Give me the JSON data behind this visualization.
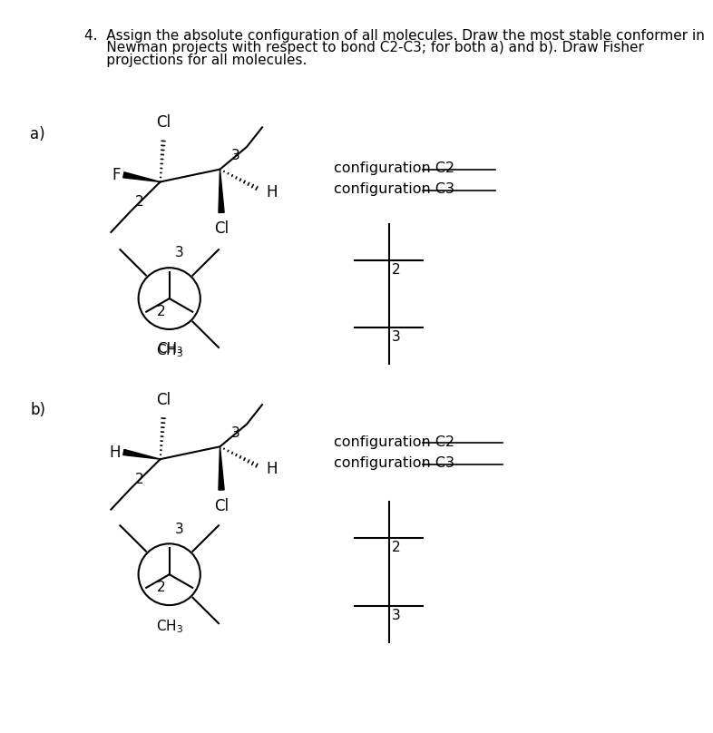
{
  "background_color": "#ffffff",
  "title_line1": "4.  Assign the absolute configuration of all molecules. Draw the most stable conformer in",
  "title_line2": "     Newman projects with respect to bond C2-C3; for both a) and b). Draw Fisher",
  "title_line3": "     projections for all molecules.",
  "label_a": "a)",
  "label_b": "b)",
  "config_c2_label": "configuration C2",
  "config_c3_label": "configuration C3",
  "ch3_label": "CH₃",
  "line_underscores": "___________"
}
